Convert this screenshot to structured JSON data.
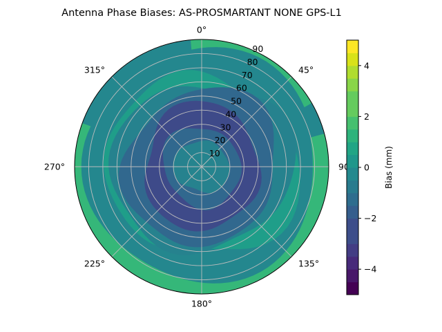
{
  "chart_data": {
    "type": "polar_contourf",
    "title": "Antenna Phase Biases: AS-PROSMARTANT  NONE GPS-L1",
    "angle_ticks": [
      {
        "deg": 0,
        "label": "0°"
      },
      {
        "deg": 45,
        "label": "45°"
      },
      {
        "deg": 90,
        "label": "90°"
      },
      {
        "deg": 135,
        "label": "135°"
      },
      {
        "deg": 180,
        "label": "180°"
      },
      {
        "deg": 225,
        "label": "225°"
      },
      {
        "deg": 270,
        "label": "270°"
      },
      {
        "deg": 315,
        "label": "315°"
      }
    ],
    "radial_ticks": [
      10,
      20,
      30,
      40,
      50,
      60,
      70,
      80,
      90
    ],
    "radial_range": [
      0,
      90
    ],
    "angle_orientation": "clockwise, 0° at top",
    "grid": true,
    "colorbar": {
      "label": "Bias (mm)",
      "range": [
        -5,
        5
      ],
      "ticks": [
        -4,
        -2,
        0,
        2,
        4
      ],
      "levels": [
        -5,
        -4.5,
        -4,
        -3.5,
        -3,
        -2.5,
        -2,
        -1.5,
        -1,
        -0.5,
        0,
        0.5,
        1,
        1.5,
        2,
        2.5,
        3,
        3.5,
        4,
        4.5,
        5
      ],
      "colormap": "viridis"
    },
    "contour_bands": [
      {
        "value": 0.5,
        "color": "#24878e",
        "shape": "disk",
        "r_outer": 90
      },
      {
        "value": 1.5,
        "color": "#35b779",
        "shape": "outer_band",
        "r": 82,
        "az_from": 75,
        "az_to": 290
      },
      {
        "value": 1.5,
        "color": "#35b779",
        "shape": "outer_band",
        "r": 84,
        "az_from": 355,
        "az_to": 60
      },
      {
        "value": 1.0,
        "color": "#1f9e89",
        "shape": "ring",
        "r": 66
      },
      {
        "value": -0.5,
        "color": "#26828e",
        "shape": "ring",
        "r": 62
      },
      {
        "value": -1.5,
        "color": "#31688e",
        "shape": "ring",
        "r": 55
      },
      {
        "value": -2.5,
        "color": "#3e4a89",
        "shape": "ring",
        "r": 43
      },
      {
        "value": -1.5,
        "color": "#31688e",
        "shape": "ring",
        "r": 28
      },
      {
        "value": -0.5,
        "color": "#26828e",
        "shape": "ring",
        "r": 19
      },
      {
        "value": 0.0,
        "color": "#25848e",
        "shape": "ring",
        "r": 10
      }
    ]
  }
}
